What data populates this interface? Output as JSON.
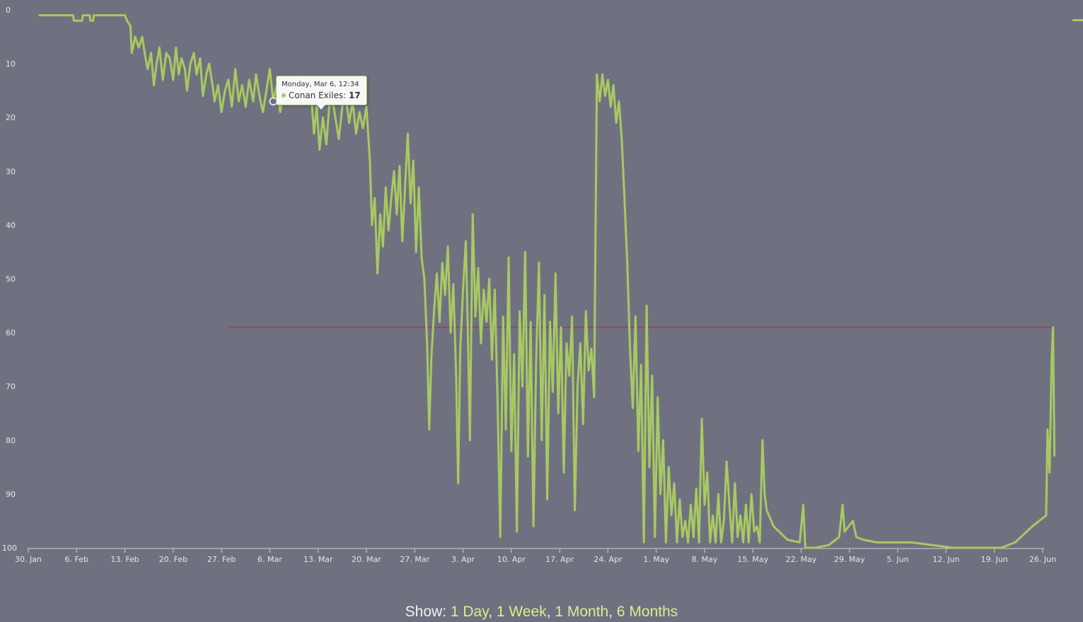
{
  "chart_data": {
    "type": "line",
    "title": "",
    "xlabel": "",
    "ylabel": "",
    "y_reversed": true,
    "ylim": [
      0,
      100
    ],
    "y_ticks": [
      0,
      10,
      20,
      30,
      40,
      50,
      60,
      70,
      80,
      90,
      100
    ],
    "x_ticks": [
      "30. Jan",
      "6. Feb",
      "13. Feb",
      "20. Feb",
      "27. Feb",
      "6. Mar",
      "13. Mar",
      "20. Mar",
      "27. Mar",
      "3. Apr",
      "10. Apr",
      "17. Apr",
      "24. Apr",
      "1. May",
      "8. May",
      "15. May",
      "22. May",
      "29. May",
      "5. Jun",
      "12. Jun",
      "19. Jun",
      "26. Jun"
    ],
    "xlim_days": [
      0,
      147
    ],
    "series": [
      {
        "name": "Conan Exiles",
        "color": "#a8c962",
        "points": [
          [
            1.5,
            1
          ],
          [
            6.5,
            1
          ],
          [
            6.6,
            2
          ],
          [
            7.8,
            2
          ],
          [
            7.9,
            1
          ],
          [
            8.9,
            1
          ],
          [
            9.0,
            2
          ],
          [
            9.4,
            2
          ],
          [
            9.5,
            1
          ],
          [
            14.0,
            1
          ],
          [
            14.3,
            2
          ],
          [
            14.8,
            3
          ],
          [
            15.0,
            8
          ],
          [
            15.5,
            5
          ],
          [
            16.0,
            7
          ],
          [
            16.5,
            5
          ],
          [
            17.0,
            9
          ],
          [
            17.3,
            11
          ],
          [
            17.8,
            8
          ],
          [
            18.2,
            14
          ],
          [
            18.6,
            10
          ],
          [
            19.0,
            7
          ],
          [
            19.5,
            13
          ],
          [
            20.0,
            8
          ],
          [
            20.5,
            9
          ],
          [
            21.0,
            13
          ],
          [
            21.4,
            7
          ],
          [
            21.8,
            12
          ],
          [
            22.2,
            9
          ],
          [
            22.7,
            11
          ],
          [
            23.0,
            15
          ],
          [
            23.5,
            10
          ],
          [
            24.0,
            8
          ],
          [
            24.4,
            12
          ],
          [
            24.9,
            9
          ],
          [
            25.3,
            16
          ],
          [
            25.8,
            12
          ],
          [
            26.2,
            10
          ],
          [
            26.7,
            14
          ],
          [
            27.0,
            17
          ],
          [
            27.5,
            14
          ],
          [
            28.0,
            19
          ],
          [
            28.5,
            15
          ],
          [
            29.0,
            13
          ],
          [
            29.5,
            18
          ],
          [
            30.0,
            11
          ],
          [
            30.5,
            17
          ],
          [
            31.0,
            14
          ],
          [
            31.5,
            18
          ],
          [
            32.0,
            13
          ],
          [
            32.6,
            17
          ],
          [
            33.0,
            12
          ],
          [
            33.5,
            16
          ],
          [
            34.0,
            19
          ],
          [
            34.5,
            15
          ],
          [
            35.0,
            11
          ],
          [
            35.5,
            17
          ],
          [
            36.0,
            14
          ],
          [
            36.5,
            19
          ],
          [
            37.0,
            15
          ],
          [
            37.5,
            17
          ],
          [
            38.0,
            14
          ],
          [
            38.5,
            16
          ],
          [
            39.0,
            17
          ],
          [
            39.5,
            15
          ],
          [
            40.0,
            17
          ],
          [
            40.5,
            14
          ],
          [
            41.0,
            16
          ],
          [
            41.4,
            23
          ],
          [
            41.8,
            18
          ],
          [
            42.2,
            26
          ],
          [
            42.7,
            20
          ],
          [
            43.2,
            25
          ],
          [
            43.6,
            18
          ],
          [
            44.0,
            16
          ],
          [
            44.5,
            20
          ],
          [
            45.0,
            24
          ],
          [
            45.5,
            18
          ],
          [
            46.0,
            16
          ],
          [
            46.5,
            21
          ],
          [
            47.0,
            17
          ],
          [
            47.5,
            23
          ],
          [
            48.0,
            19
          ],
          [
            48.5,
            22
          ],
          [
            49.0,
            18
          ],
          [
            49.5,
            28
          ],
          [
            49.8,
            40
          ],
          [
            50.2,
            35
          ],
          [
            50.6,
            49
          ],
          [
            51.0,
            38
          ],
          [
            51.4,
            44
          ],
          [
            51.8,
            33
          ],
          [
            52.2,
            41
          ],
          [
            52.6,
            35
          ],
          [
            53.0,
            30
          ],
          [
            53.4,
            38
          ],
          [
            53.8,
            29
          ],
          [
            54.2,
            43
          ],
          [
            54.6,
            33
          ],
          [
            55.0,
            23
          ],
          [
            55.4,
            36
          ],
          [
            55.8,
            28
          ],
          [
            56.2,
            45
          ],
          [
            56.6,
            33
          ],
          [
            57.0,
            46
          ],
          [
            57.4,
            50
          ],
          [
            57.8,
            62
          ],
          [
            58.1,
            78
          ],
          [
            58.4,
            65
          ],
          [
            58.8,
            56
          ],
          [
            59.2,
            49
          ],
          [
            59.6,
            58
          ],
          [
            60.0,
            47
          ],
          [
            60.4,
            53
          ],
          [
            60.8,
            44
          ],
          [
            61.2,
            60
          ],
          [
            61.6,
            51
          ],
          [
            62.0,
            68
          ],
          [
            62.3,
            88
          ],
          [
            62.6,
            63
          ],
          [
            63.0,
            52
          ],
          [
            63.4,
            43
          ],
          [
            63.7,
            60
          ],
          [
            64.0,
            80
          ],
          [
            64.4,
            38
          ],
          [
            64.8,
            57
          ],
          [
            65.2,
            48
          ],
          [
            65.6,
            62
          ],
          [
            66.0,
            52
          ],
          [
            66.4,
            58
          ],
          [
            66.8,
            50
          ],
          [
            67.2,
            65
          ],
          [
            67.6,
            52
          ],
          [
            68.0,
            72
          ],
          [
            68.4,
            98
          ],
          [
            68.8,
            57
          ],
          [
            69.2,
            78
          ],
          [
            69.6,
            46
          ],
          [
            70.0,
            82
          ],
          [
            70.4,
            64
          ],
          [
            70.8,
            97
          ],
          [
            71.2,
            56
          ],
          [
            71.6,
            70
          ],
          [
            72.0,
            45
          ],
          [
            72.4,
            83
          ],
          [
            72.8,
            58
          ],
          [
            73.2,
            96
          ],
          [
            73.6,
            65
          ],
          [
            74.0,
            47
          ],
          [
            74.4,
            80
          ],
          [
            74.8,
            53
          ],
          [
            75.2,
            91
          ],
          [
            75.6,
            58
          ],
          [
            76.0,
            71
          ],
          [
            76.4,
            49
          ],
          [
            76.8,
            75
          ],
          [
            77.2,
            59
          ],
          [
            77.6,
            86
          ],
          [
            78.0,
            62
          ],
          [
            78.4,
            68
          ],
          [
            78.8,
            57
          ],
          [
            79.2,
            93
          ],
          [
            79.6,
            70
          ],
          [
            80.0,
            62
          ],
          [
            80.4,
            77
          ],
          [
            80.8,
            56
          ],
          [
            81.2,
            67
          ],
          [
            81.6,
            63
          ],
          [
            82.0,
            72
          ],
          [
            82.4,
            12
          ],
          [
            82.8,
            17
          ],
          [
            83.2,
            12
          ],
          [
            83.6,
            16
          ],
          [
            84.0,
            13
          ],
          [
            84.4,
            18
          ],
          [
            84.8,
            14
          ],
          [
            85.2,
            21
          ],
          [
            85.6,
            17
          ],
          [
            86.0,
            24
          ],
          [
            86.4,
            35
          ],
          [
            86.8,
            47
          ],
          [
            87.2,
            63
          ],
          [
            87.6,
            74
          ],
          [
            88.0,
            57
          ],
          [
            88.4,
            82
          ],
          [
            88.8,
            66
          ],
          [
            89.2,
            99
          ],
          [
            89.6,
            55
          ],
          [
            90.0,
            85
          ],
          [
            90.4,
            68
          ],
          [
            90.8,
            98
          ],
          [
            91.2,
            72
          ],
          [
            91.6,
            90
          ],
          [
            92.0,
            80
          ],
          [
            92.4,
            99
          ],
          [
            92.8,
            85
          ],
          [
            93.2,
            94
          ],
          [
            93.6,
            88
          ],
          [
            94.0,
            99
          ],
          [
            94.4,
            91
          ],
          [
            94.8,
            98
          ],
          [
            95.2,
            95
          ],
          [
            95.6,
            99
          ],
          [
            96.0,
            92
          ],
          [
            96.4,
            98
          ],
          [
            96.8,
            89
          ],
          [
            97.2,
            99
          ],
          [
            97.6,
            76
          ],
          [
            98.0,
            92
          ],
          [
            98.4,
            86
          ],
          [
            98.8,
            99
          ],
          [
            99.2,
            94
          ],
          [
            99.6,
            99
          ],
          [
            100.0,
            90
          ],
          [
            100.4,
            99
          ],
          [
            100.8,
            95
          ],
          [
            101.2,
            84
          ],
          [
            101.6,
            92
          ],
          [
            102.0,
            99
          ],
          [
            102.4,
            88
          ],
          [
            102.8,
            98
          ],
          [
            103.2,
            94
          ],
          [
            103.6,
            99
          ],
          [
            104.0,
            92
          ],
          [
            104.4,
            99
          ],
          [
            104.8,
            90
          ],
          [
            105.2,
            97
          ],
          [
            105.6,
            96
          ],
          [
            106.0,
            99
          ],
          [
            106.4,
            80
          ],
          [
            106.7,
            90
          ],
          [
            107.0,
            93
          ],
          [
            108.0,
            96
          ],
          [
            110.0,
            98.5
          ],
          [
            111.8,
            99
          ],
          [
            112.3,
            92
          ],
          [
            112.6,
            100
          ],
          [
            114.0,
            100
          ],
          [
            116.0,
            99.5
          ],
          [
            117.5,
            98
          ],
          [
            118.0,
            92
          ],
          [
            118.3,
            97
          ],
          [
            119.5,
            95
          ],
          [
            120.0,
            98
          ],
          [
            121.0,
            98.5
          ],
          [
            123.0,
            99
          ],
          [
            128.0,
            99
          ],
          [
            134.0,
            100
          ],
          [
            141.0,
            100
          ],
          [
            143.0,
            99
          ],
          [
            145.5,
            96
          ],
          [
            147.5,
            94
          ],
          [
            147.7,
            78
          ],
          [
            148.0,
            86
          ],
          [
            148.3,
            65
          ],
          [
            148.5,
            59
          ],
          [
            148.7,
            83
          ]
        ]
      }
    ],
    "reference_line": {
      "y": 59,
      "x_start_days": 29.1,
      "x_end_days": 148.5,
      "color": "#c41e2a"
    }
  },
  "tooltip": {
    "date": "Monday, Mar 6, 12:34",
    "series_label": "Conan Exiles: ",
    "value": "17"
  },
  "footer": {
    "show_label": "Show: ",
    "options": [
      "1 Day",
      "1 Week",
      "1 Month",
      "6 Months"
    ],
    "separator": ", "
  },
  "colors": {
    "background": "#6f7180",
    "line": "#a8c962",
    "reference": "#c41e2a",
    "link": "#d7f08a"
  }
}
